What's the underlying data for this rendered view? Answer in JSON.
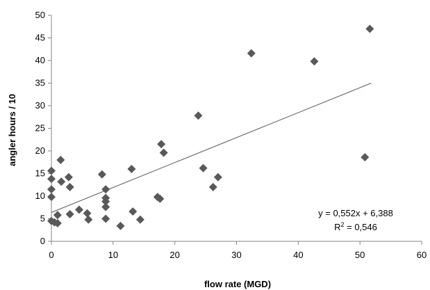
{
  "chart_data": {
    "type": "scatter",
    "title": "",
    "xlabel": "flow rate (MGD)",
    "ylabel": "angler hours / 10",
    "xlim": [
      0,
      60
    ],
    "ylim": [
      0,
      50
    ],
    "xticks": [
      0,
      10,
      20,
      30,
      40,
      50,
      60
    ],
    "yticks": [
      0,
      5,
      10,
      15,
      20,
      25,
      30,
      35,
      40,
      45,
      50
    ],
    "grid": false,
    "legend": "none",
    "marker_color": "#595959",
    "trendline_color": "#595959",
    "trendline": {
      "slope": 0.552,
      "intercept": 6.388,
      "x_range": [
        0,
        51.8
      ],
      "equation": "y = 0,552x + 6,388",
      "r2_prefix": "R",
      "r2_suffix": " = 0,546"
    },
    "series": [
      {
        "points": [
          [
            0,
            4.5
          ],
          [
            0,
            15.6
          ],
          [
            0,
            13.8
          ],
          [
            0,
            11.5
          ],
          [
            0,
            9.8
          ],
          [
            0.5,
            4.2
          ],
          [
            1,
            5.8
          ],
          [
            1,
            4.0
          ],
          [
            1.5,
            18.0
          ],
          [
            1.6,
            13.2
          ],
          [
            2.8,
            14.2
          ],
          [
            3.0,
            12.0
          ],
          [
            3.0,
            6.0
          ],
          [
            4.5,
            7.0
          ],
          [
            5.8,
            6.2
          ],
          [
            6.0,
            4.8
          ],
          [
            8.2,
            14.8
          ],
          [
            8.8,
            11.5
          ],
          [
            8.8,
            9.6
          ],
          [
            8.8,
            8.8
          ],
          [
            8.8,
            7.6
          ],
          [
            8.8,
            5.0
          ],
          [
            11.2,
            3.4
          ],
          [
            13.0,
            16.0
          ],
          [
            13.2,
            6.6
          ],
          [
            14.4,
            4.8
          ],
          [
            17.2,
            9.8
          ],
          [
            17.6,
            9.4
          ],
          [
            17.8,
            21.5
          ],
          [
            18.2,
            19.6
          ],
          [
            23.8,
            27.8
          ],
          [
            24.6,
            16.2
          ],
          [
            26.2,
            12.0
          ],
          [
            27.0,
            14.2
          ],
          [
            32.4,
            41.6
          ],
          [
            42.6,
            39.8
          ],
          [
            50.8,
            18.6
          ],
          [
            51.6,
            47.0
          ]
        ]
      }
    ]
  }
}
